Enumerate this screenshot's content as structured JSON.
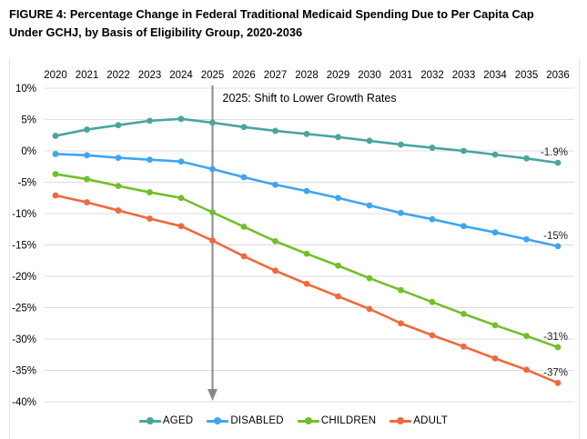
{
  "figure": {
    "title_lines": [
      "FIGURE 4: Percentage Change in Federal Traditional Medicaid Spending Due to Per Capita Cap",
      "Under GCHJ, by Basis of Eligibility Group, 2020-2036"
    ]
  },
  "chart_data": {
    "type": "line",
    "x": [
      2020,
      2021,
      2022,
      2023,
      2024,
      2025,
      2026,
      2027,
      2028,
      2029,
      2030,
      2031,
      2032,
      2033,
      2034,
      2035,
      2036
    ],
    "x_axis_position": "top",
    "series": [
      {
        "name": "AGED",
        "color": "#4aa59d",
        "end_label": "-1.9%",
        "values": [
          2.4,
          3.4,
          4.1,
          4.8,
          5.1,
          4.5,
          3.8,
          3.2,
          2.7,
          2.2,
          1.6,
          1.0,
          0.5,
          0.0,
          -0.6,
          -1.2,
          -1.9
        ]
      },
      {
        "name": "DISABLED",
        "color": "#3fa5ef",
        "end_label": "-15%",
        "values": [
          -0.5,
          -0.7,
          -1.1,
          -1.4,
          -1.7,
          -2.9,
          -4.2,
          -5.4,
          -6.4,
          -7.5,
          -8.7,
          -9.9,
          -10.9,
          -12.0,
          -13.0,
          -14.1,
          -15.2
        ]
      },
      {
        "name": "CHILDREN",
        "color": "#73bf2a",
        "end_label": "-31%",
        "values": [
          -3.7,
          -4.5,
          -5.6,
          -6.6,
          -7.5,
          -9.8,
          -12.1,
          -14.4,
          -16.4,
          -18.3,
          -20.3,
          -22.2,
          -24.1,
          -26.0,
          -27.8,
          -29.5,
          -31.3
        ]
      },
      {
        "name": "ADULT",
        "color": "#ed6a3c",
        "end_label": "-37%",
        "values": [
          -7.1,
          -8.2,
          -9.5,
          -10.8,
          -12.0,
          -14.3,
          -16.8,
          -19.1,
          -21.2,
          -23.2,
          -25.2,
          -27.5,
          -29.4,
          -31.2,
          -33.1,
          -34.9,
          -37.0
        ]
      }
    ],
    "y_ticks": [
      10,
      5,
      0,
      -5,
      -10,
      -15,
      -20,
      -25,
      -30,
      -35,
      -40
    ],
    "y_tick_labels": [
      "10%",
      "5%",
      "0%",
      "-5%",
      "-10%",
      "-15%",
      "-20%",
      "-25%",
      "-30%",
      "-35%",
      "-40%"
    ],
    "ylim": [
      -40,
      10
    ],
    "grid": true,
    "legend_position": "bottom",
    "annotation": {
      "text": "2025: Shift to Lower Growth Rates",
      "x": 2025
    }
  },
  "colors": {
    "gridline": "#dcdcdc",
    "arrow": "#8a8a8a",
    "axis_text": "#000000",
    "end_label_text": "#222222"
  }
}
